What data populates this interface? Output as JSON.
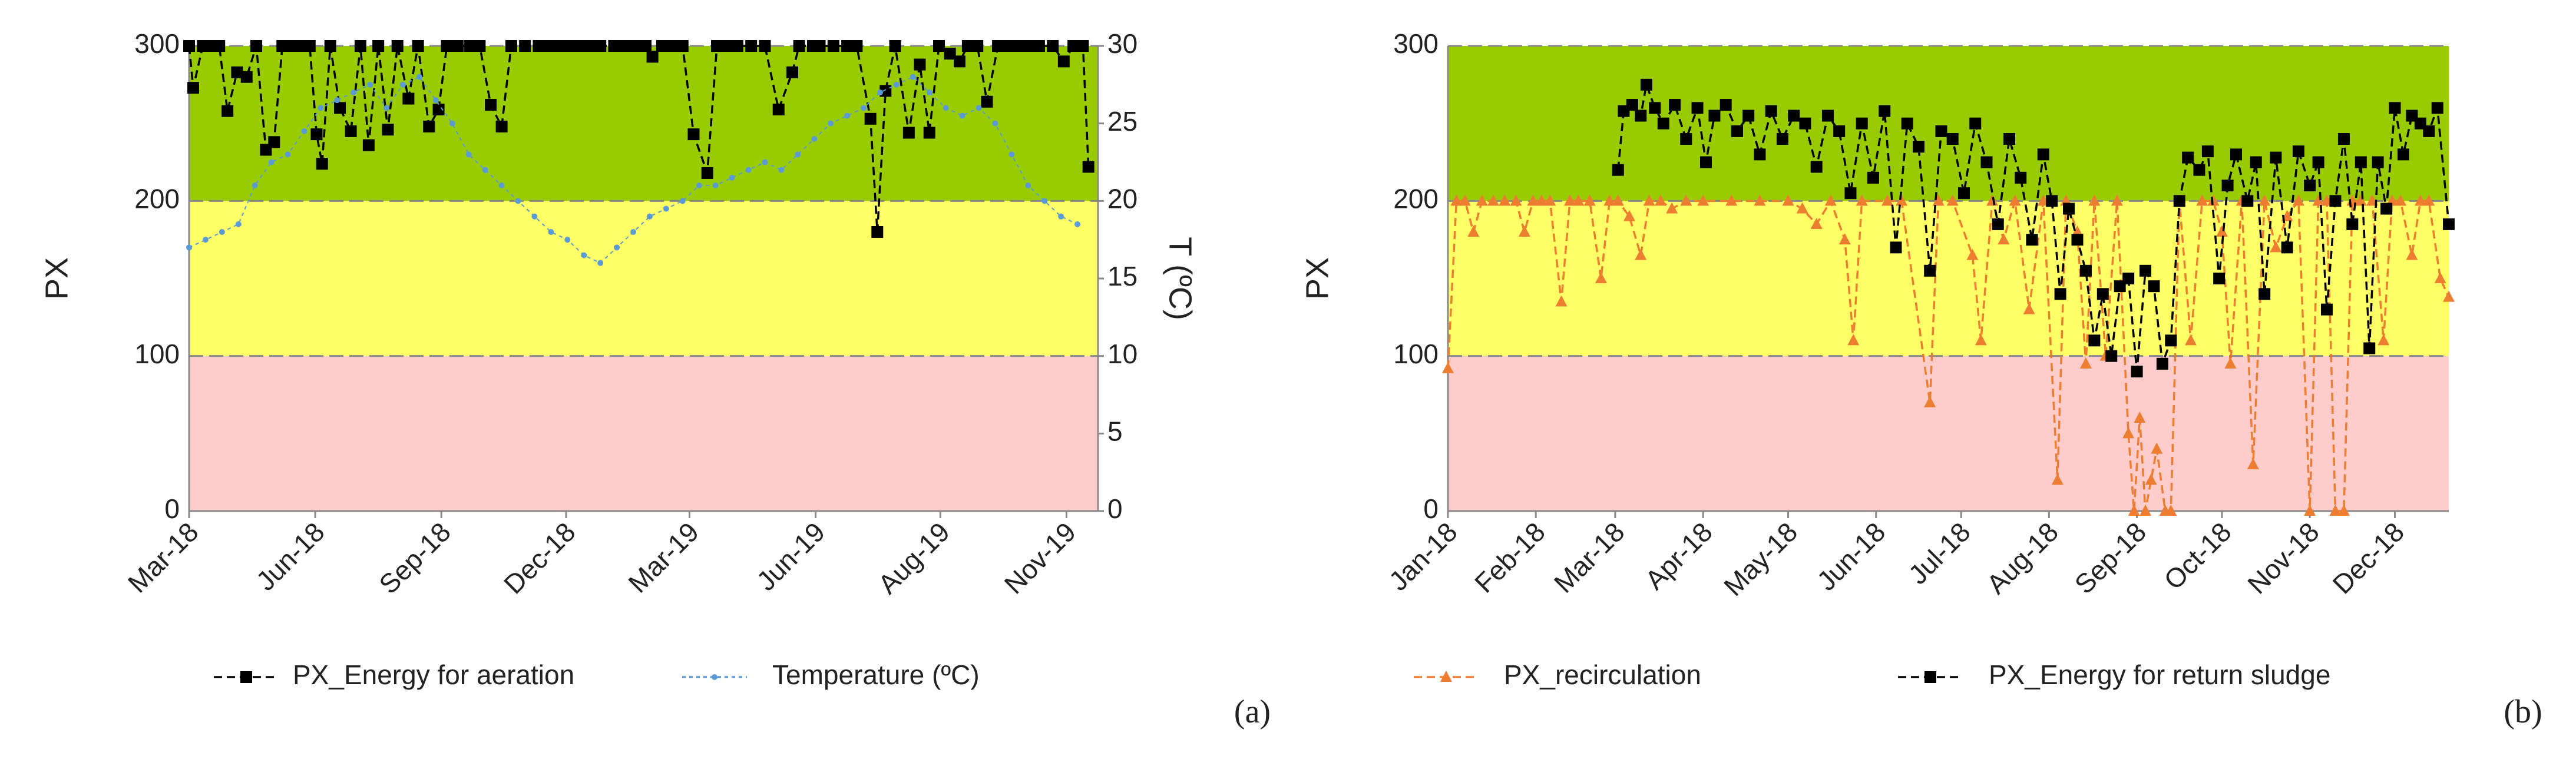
{
  "chart_data": [
    {
      "type": "line",
      "label": "(a)",
      "y_label": "PX",
      "y2_label": "T (ºC)",
      "xlim": [
        0,
        663
      ],
      "xticks": [
        {
          "value": 0,
          "label": "Mar-18"
        },
        {
          "value": 92,
          "label": "Jun-18"
        },
        {
          "value": 184,
          "label": "Sep-18"
        },
        {
          "value": 275,
          "label": "Dec-18"
        },
        {
          "value": 365,
          "label": "Mar-19"
        },
        {
          "value": 457,
          "label": "Jun-19"
        },
        {
          "value": 548,
          "label": "Aug-19"
        },
        {
          "value": 640,
          "label": "Nov-19"
        }
      ],
      "ylim": [
        0,
        300
      ],
      "yticks": [
        0,
        100,
        200,
        300
      ],
      "y2lim": [
        0,
        30
      ],
      "y2ticks": [
        0,
        5,
        10,
        15,
        20,
        25,
        30
      ],
      "bands": [
        {
          "from": 0,
          "to": 100,
          "color": "#ffcccc"
        },
        {
          "from": 100,
          "to": 200,
          "color": "#ffff66"
        },
        {
          "from": 200,
          "to": 300,
          "color": "#99cc00"
        }
      ],
      "series": [
        {
          "name": "PX_Energy for aeration",
          "color": "#000000",
          "marker": "square",
          "x": [
            0,
            3,
            10,
            17,
            22,
            28,
            35,
            42,
            49,
            56,
            62,
            68,
            75,
            82,
            88,
            93,
            97,
            103,
            110,
            118,
            125,
            131,
            138,
            145,
            152,
            160,
            167,
            175,
            182,
            188,
            196,
            205,
            212,
            220,
            228,
            235,
            245,
            255,
            262,
            270,
            278,
            285,
            292,
            300,
            310,
            318,
            325,
            333,
            338,
            345,
            352,
            360,
            368,
            378,
            385,
            392,
            400,
            410,
            420,
            430,
            440,
            445,
            455,
            460,
            470,
            480,
            487,
            497,
            502,
            508,
            515,
            525,
            533,
            540,
            547,
            555,
            562,
            568,
            575,
            582,
            590,
            598,
            605,
            612,
            620,
            630,
            638,
            645,
            652,
            656
          ],
          "values": [
            300,
            273,
            300,
            300,
            300,
            258,
            283,
            280,
            300,
            233,
            238,
            300,
            300,
            300,
            300,
            243,
            224,
            300,
            260,
            245,
            300,
            236,
            300,
            246,
            300,
            266,
            300,
            248,
            259,
            300,
            300,
            300,
            300,
            262,
            248,
            300,
            300,
            300,
            300,
            300,
            300,
            300,
            300,
            300,
            300,
            300,
            300,
            300,
            293,
            300,
            300,
            300,
            243,
            218,
            300,
            300,
            300,
            300,
            300,
            259,
            283,
            300,
            300,
            300,
            300,
            300,
            300,
            253,
            180,
            271,
            300,
            244,
            288,
            244,
            300,
            295,
            290,
            300,
            300,
            264,
            300,
            300,
            300,
            300,
            300,
            300,
            290,
            300,
            300,
            222
          ]
        },
        {
          "name": "Temperature (ºC)",
          "color": "#5b9bd5",
          "marker": "dot",
          "axis": "y2",
          "x": [
            0,
            12,
            24,
            36,
            48,
            60,
            72,
            84,
            96,
            108,
            120,
            132,
            144,
            156,
            168,
            180,
            192,
            204,
            216,
            228,
            240,
            252,
            264,
            276,
            288,
            300,
            312,
            324,
            336,
            348,
            360,
            372,
            384,
            396,
            408,
            420,
            432,
            444,
            456,
            468,
            480,
            492,
            504,
            516,
            528,
            540,
            552,
            564,
            576,
            588,
            600,
            612,
            624,
            636,
            648
          ],
          "values": [
            17,
            17.5,
            18,
            18.5,
            21,
            22.5,
            23,
            24.5,
            26,
            26.5,
            27,
            27.5,
            26,
            27.5,
            28,
            26.5,
            25,
            23,
            22,
            21,
            20,
            19,
            18,
            17.5,
            16.5,
            16,
            17,
            18,
            19,
            19.5,
            20,
            21,
            21,
            21.5,
            22,
            22.5,
            22,
            23,
            24,
            25,
            25.5,
            26,
            27,
            27.5,
            28,
            27,
            26,
            25.5,
            26,
            25,
            23,
            21,
            20,
            19,
            18.5
          ]
        }
      ]
    },
    {
      "type": "line",
      "label": "(b)",
      "y_label": "PX",
      "xlim": [
        0,
        353
      ],
      "xticks": [
        {
          "value": 0,
          "label": "Jan-18"
        },
        {
          "value": 31,
          "label": "Feb-18"
        },
        {
          "value": 59,
          "label": "Mar-18"
        },
        {
          "value": 90,
          "label": "Apr-18"
        },
        {
          "value": 120,
          "label": "May-18"
        },
        {
          "value": 151,
          "label": "Jun-18"
        },
        {
          "value": 181,
          "label": "Jul-18"
        },
        {
          "value": 212,
          "label": "Aug-18"
        },
        {
          "value": 243,
          "label": "Sep-18"
        },
        {
          "value": 273,
          "label": "Oct-18"
        },
        {
          "value": 304,
          "label": "Nov-18"
        },
        {
          "value": 334,
          "label": "Dec-18"
        }
      ],
      "ylim": [
        0,
        300
      ],
      "yticks": [
        0,
        100,
        200,
        300
      ],
      "bands": [
        {
          "from": 0,
          "to": 100,
          "color": "#ffcccc"
        },
        {
          "from": 100,
          "to": 200,
          "color": "#ffff66"
        },
        {
          "from": 200,
          "to": 300,
          "color": "#99cc00"
        }
      ],
      "series": [
        {
          "name": "PX_recirculation",
          "color": "#ed7d31",
          "marker": "triangle",
          "x": [
            0,
            3,
            6,
            9,
            12,
            16,
            20,
            24,
            27,
            30,
            33,
            36,
            40,
            43,
            46,
            50,
            54,
            57,
            60,
            64,
            68,
            71,
            75,
            79,
            84,
            90,
            100,
            110,
            120,
            125,
            130,
            135,
            140,
            143,
            146,
            155,
            160,
            170,
            173,
            178,
            185,
            188,
            192,
            196,
            200,
            205,
            210,
            215,
            218,
            222,
            225,
            228,
            232,
            236,
            240,
            242,
            244,
            246,
            248,
            250,
            253,
            255,
            258,
            262,
            266,
            270,
            273,
            276,
            280,
            284,
            288,
            292,
            296,
            300,
            304,
            307,
            310,
            313,
            316,
            319,
            322,
            326,
            330,
            333,
            336,
            340,
            343,
            346,
            350,
            353
          ],
          "values": [
            92,
            200,
            200,
            180,
            200,
            200,
            200,
            200,
            180,
            200,
            200,
            200,
            135,
            200,
            200,
            200,
            150,
            200,
            200,
            190,
            165,
            200,
            200,
            195,
            200,
            200,
            200,
            200,
            200,
            195,
            185,
            200,
            175,
            110,
            200,
            200,
            200,
            70,
            200,
            200,
            165,
            110,
            200,
            175,
            200,
            130,
            200,
            20,
            200,
            180,
            95,
            200,
            100,
            200,
            50,
            0,
            60,
            0,
            20,
            40,
            0,
            0,
            200,
            110,
            200,
            200,
            180,
            95,
            200,
            30,
            200,
            170,
            190,
            200,
            0,
            200,
            200,
            0,
            0,
            200,
            200,
            200,
            110,
            200,
            200,
            165,
            200,
            200,
            150,
            138
          ]
        },
        {
          "name": "PX_Energy for return sludge",
          "color": "#000000",
          "marker": "square",
          "x": [
            60,
            62,
            65,
            68,
            70,
            73,
            76,
            80,
            84,
            88,
            91,
            94,
            98,
            102,
            106,
            110,
            114,
            118,
            122,
            126,
            130,
            134,
            138,
            142,
            146,
            150,
            154,
            158,
            162,
            166,
            170,
            174,
            178,
            182,
            186,
            190,
            194,
            198,
            202,
            206,
            210,
            213,
            216,
            219,
            222,
            225,
            228,
            231,
            234,
            237,
            240,
            243,
            246,
            249,
            252,
            255,
            258,
            261,
            265,
            268,
            272,
            275,
            278,
            282,
            285,
            288,
            292,
            296,
            300,
            304,
            307,
            310,
            313,
            316,
            319,
            322,
            325,
            328,
            331,
            334,
            337,
            340,
            343,
            346,
            349,
            353
          ],
          "values": [
            220,
            258,
            262,
            255,
            275,
            260,
            250,
            262,
            240,
            260,
            225,
            255,
            262,
            245,
            255,
            230,
            258,
            240,
            255,
            250,
            222,
            255,
            245,
            205,
            250,
            215,
            258,
            170,
            250,
            235,
            155,
            245,
            240,
            205,
            250,
            225,
            185,
            240,
            215,
            175,
            230,
            200,
            140,
            195,
            175,
            155,
            110,
            140,
            100,
            145,
            150,
            90,
            155,
            145,
            95,
            110,
            200,
            228,
            220,
            232,
            150,
            210,
            230,
            200,
            225,
            140,
            228,
            170,
            232,
            210,
            225,
            130,
            200,
            240,
            185,
            225,
            105,
            225,
            195,
            260,
            230,
            255,
            250,
            245,
            260,
            185
          ]
        }
      ]
    }
  ]
}
